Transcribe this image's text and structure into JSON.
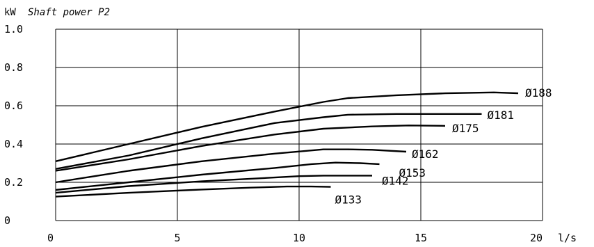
{
  "chart_data": {
    "type": "line",
    "title": "Shaft power P2",
    "ylabel": "kW",
    "xlabel": "l/s",
    "xlim": [
      0,
      20
    ],
    "ylim": [
      0,
      1.0
    ],
    "x_ticks": [
      0,
      5,
      10,
      15,
      20
    ],
    "x_tick_labels": [
      "0",
      "5",
      "10",
      "15",
      "20"
    ],
    "y_ticks": [
      0,
      0.2,
      0.4,
      0.6,
      0.8,
      1.0
    ],
    "y_tick_labels": [
      "0",
      "0.2",
      "0.4",
      "0.6",
      "0.8",
      "1.0"
    ],
    "grid": true,
    "series": [
      {
        "name": "Ø188",
        "x": [
          0,
          3,
          6,
          9,
          11,
          12,
          14,
          16,
          18,
          19
        ],
        "y": [
          0.31,
          0.4,
          0.49,
          0.57,
          0.62,
          0.64,
          0.655,
          0.665,
          0.67,
          0.665
        ]
      },
      {
        "name": "Ø181",
        "x": [
          0,
          3,
          6,
          9,
          11,
          12,
          14,
          16,
          17.5
        ],
        "y": [
          0.27,
          0.34,
          0.43,
          0.51,
          0.54,
          0.553,
          0.557,
          0.557,
          0.557
        ]
      },
      {
        "name": "Ø175",
        "x": [
          0,
          3,
          6,
          9,
          11,
          13,
          14.5,
          16
        ],
        "y": [
          0.26,
          0.32,
          0.39,
          0.45,
          0.48,
          0.492,
          0.497,
          0.495
        ]
      },
      {
        "name": "Ø162",
        "x": [
          0,
          3,
          6,
          9,
          11,
          12,
          13,
          14.4
        ],
        "y": [
          0.2,
          0.26,
          0.31,
          0.35,
          0.372,
          0.372,
          0.37,
          0.36
        ]
      },
      {
        "name": "Ø153",
        "x": [
          0,
          3,
          6,
          9,
          10.5,
          11.5,
          12.5,
          13.3
        ],
        "y": [
          0.16,
          0.2,
          0.24,
          0.275,
          0.295,
          0.303,
          0.3,
          0.295
        ]
      },
      {
        "name": "Ø142",
        "x": [
          0,
          3,
          6,
          9,
          10,
          11,
          12,
          13
        ],
        "y": [
          0.145,
          0.18,
          0.205,
          0.225,
          0.232,
          0.235,
          0.235,
          0.235
        ]
      },
      {
        "name": "Ø133",
        "x": [
          0,
          3,
          6,
          8,
          9.5,
          10.5,
          11.3
        ],
        "y": [
          0.125,
          0.145,
          0.162,
          0.172,
          0.178,
          0.178,
          0.176
        ]
      }
    ]
  }
}
